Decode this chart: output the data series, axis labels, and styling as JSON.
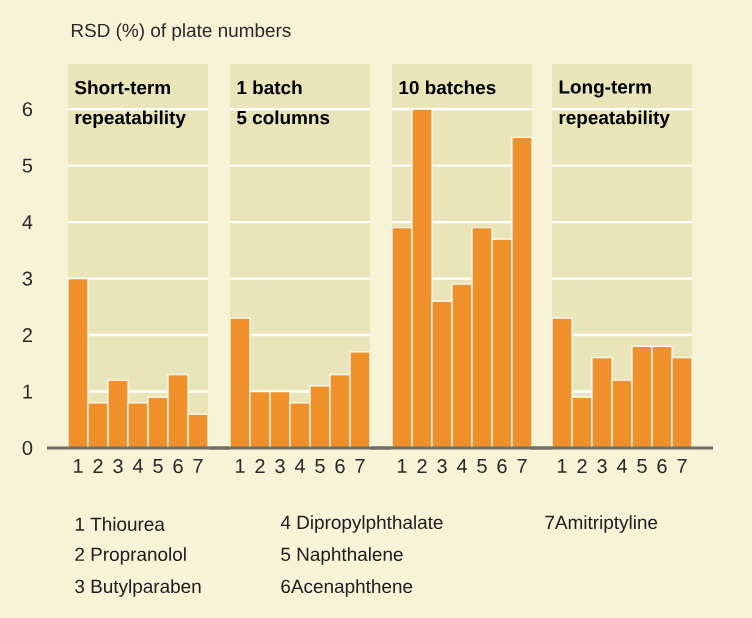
{
  "chart_data": [
    {
      "type": "bar",
      "title": "Short-term",
      "subtitle": "repeatability",
      "ylabel": "RSD (%) of plate numbers",
      "categories": [
        "1",
        "2",
        "3",
        "4",
        "5",
        "6",
        "7"
      ],
      "values": [
        3.0,
        0.8,
        1.2,
        0.8,
        0.9,
        1.3,
        0.6
      ],
      "color": "#f0902a",
      "bands": [
        {
          "axis": "y",
          "from": 0,
          "to": 6.8,
          "color": "#eae5b8"
        }
      ],
      "ylim": [
        0,
        6.8
      ],
      "yticks": [
        0,
        1,
        2,
        3,
        4,
        5,
        6
      ],
      "grid": "y",
      "annotations": [
        "1 Thiourea",
        "2 Propranolol",
        "3 Butylparaben",
        "4 Dipropylphthalate",
        "5 Naphthalene",
        "6Acenaphthene",
        "7Amitriptyline"
      ]
    },
    {
      "type": "bar",
      "title": "1 batch",
      "subtitle": "5 columns",
      "categories": [
        "1",
        "2",
        "3",
        "4",
        "5",
        "6",
        "7"
      ],
      "values": [
        2.3,
        1.0,
        1.0,
        0.8,
        1.1,
        1.3,
        1.7
      ],
      "color": "#f0902a",
      "bands": [
        {
          "axis": "y",
          "from": 0,
          "to": 6.8,
          "color": "#eae5b8"
        }
      ],
      "ylim": [
        0,
        6.8
      ],
      "yticks": [
        0,
        1,
        2,
        3,
        4,
        5,
        6
      ],
      "grid": "y",
      "tick_labels": "x"
    },
    {
      "type": "bar",
      "title": "10 batches",
      "categories": [
        "1",
        "2",
        "3",
        "4",
        "5",
        "6",
        "7"
      ],
      "values": [
        3.9,
        6.0,
        2.6,
        2.9,
        3.9,
        3.7,
        5.5
      ],
      "color": "#f0902a",
      "bands": [
        {
          "axis": "y",
          "from": 0,
          "to": 6.8,
          "color": "#eae5b8"
        }
      ],
      "ylim": [
        0,
        6.8
      ],
      "yticks": [
        0,
        1,
        2,
        3,
        4,
        5,
        6
      ],
      "grid": "y",
      "tick_labels": "x"
    },
    {
      "type": "bar",
      "title": "Long-term",
      "subtitle": "repeatability",
      "categories": [
        "1",
        "2",
        "3",
        "4",
        "5",
        "6",
        "7"
      ],
      "values": [
        2.3,
        0.9,
        1.6,
        1.2,
        1.8,
        1.8,
        1.6
      ],
      "color": "#f0902a",
      "bands": [
        {
          "axis": "y",
          "from": 0,
          "to": 6.8,
          "color": "#eae5b8"
        }
      ],
      "ylim": [
        0,
        6.8
      ],
      "yticks": [
        0,
        1,
        2,
        3,
        4,
        5,
        6
      ],
      "grid": "y",
      "tick_labels": "x"
    }
  ]
}
